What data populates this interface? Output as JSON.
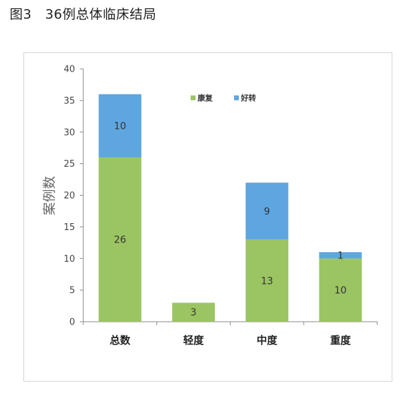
{
  "caption": "图3　36例总体临床结局",
  "chart_data": {
    "type": "bar",
    "stacked": true,
    "categories": [
      "总数",
      "轻度",
      "中度",
      "重度"
    ],
    "series": [
      {
        "name": "康复",
        "color": "#9bc462",
        "values": [
          26,
          3,
          13,
          10
        ]
      },
      {
        "name": "好转",
        "color": "#5ea6e0",
        "values": [
          10,
          0,
          9,
          1
        ]
      }
    ],
    "ylabel": "案例数",
    "ylim": [
      0,
      40
    ],
    "yticks": [
      0,
      5,
      10,
      15,
      20,
      25,
      30,
      35,
      40
    ],
    "legend_position": "top-center",
    "grid": false
  }
}
